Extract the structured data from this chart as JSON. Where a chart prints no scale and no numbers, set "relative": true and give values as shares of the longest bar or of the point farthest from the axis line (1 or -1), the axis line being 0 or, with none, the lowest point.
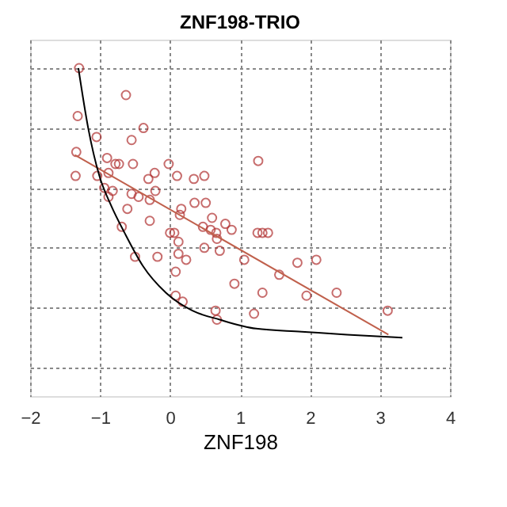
{
  "chart_data": {
    "type": "scatter",
    "title": "ZNF198-TRIO",
    "xlabel": "ZNF198",
    "relative": true,
    "xlim": [
      -2,
      4
    ],
    "xticks": [
      -2,
      -1,
      0,
      1,
      2,
      3,
      4
    ],
    "grid": true,
    "tick_labels": "x",
    "series": [
      {
        "marker": "circle",
        "color": "#b03030",
        "x": [
          -1.3,
          -0.63,
          -1.32,
          -0.38,
          -1.05,
          -0.55,
          -1.34,
          -0.9,
          -0.78,
          -0.73,
          -0.53,
          -0.02,
          1.26,
          -1.35,
          -1.04,
          -0.88,
          -0.22,
          -0.31,
          0.1,
          0.34,
          0.49,
          -0.94,
          -0.82,
          -0.88,
          -0.55,
          -0.45,
          -0.21,
          -0.29,
          -0.61,
          0.35,
          0.51,
          0.16,
          0.14,
          0.6,
          -0.29,
          -0.69,
          0.79,
          0.47,
          0.58,
          0.66,
          0.88,
          0.0,
          0.06,
          1.25,
          1.32,
          1.4,
          0.67,
          0.12,
          0.49,
          0.71,
          -0.5,
          -0.18,
          0.12,
          0.23,
          1.06,
          0.08,
          1.82,
          2.09,
          1.56,
          0.92,
          1.32,
          1.95,
          2.38,
          0.08,
          0.18,
          0.65,
          0.67,
          1.2,
          3.11
        ],
        "values": [
          1.0,
          0.91,
          0.84,
          0.8,
          0.77,
          0.76,
          0.72,
          0.7,
          0.68,
          0.68,
          0.68,
          0.68,
          0.69,
          0.64,
          0.64,
          0.65,
          0.65,
          0.63,
          0.64,
          0.63,
          0.64,
          0.6,
          0.59,
          0.57,
          0.58,
          0.57,
          0.59,
          0.56,
          0.53,
          0.55,
          0.55,
          0.53,
          0.51,
          0.5,
          0.49,
          0.47,
          0.48,
          0.47,
          0.46,
          0.45,
          0.46,
          0.45,
          0.45,
          0.45,
          0.45,
          0.45,
          0.43,
          0.42,
          0.4,
          0.39,
          0.37,
          0.37,
          0.38,
          0.36,
          0.36,
          0.32,
          0.35,
          0.36,
          0.31,
          0.28,
          0.25,
          0.24,
          0.25,
          0.24,
          0.22,
          0.19,
          0.16,
          0.18,
          0.19
        ]
      },
      {
        "type": "line",
        "color": "#c0604c",
        "marker": "none",
        "line_style": "solid",
        "x": [
          -1.36,
          3.12
        ],
        "values": [
          0.71,
          0.11
        ]
      },
      {
        "type": "line",
        "color": "#000000",
        "marker": "none",
        "line_style": "solid",
        "x": [
          -1.31,
          -1.17,
          -1.01,
          -0.84,
          -0.65,
          -0.39,
          -0.06,
          0.32,
          0.71,
          1.23,
          1.88,
          2.53,
          3.32
        ],
        "values": [
          1.0,
          0.8,
          0.64,
          0.54,
          0.45,
          0.34,
          0.25,
          0.19,
          0.16,
          0.13,
          0.12,
          0.11,
          0.1
        ]
      }
    ]
  }
}
